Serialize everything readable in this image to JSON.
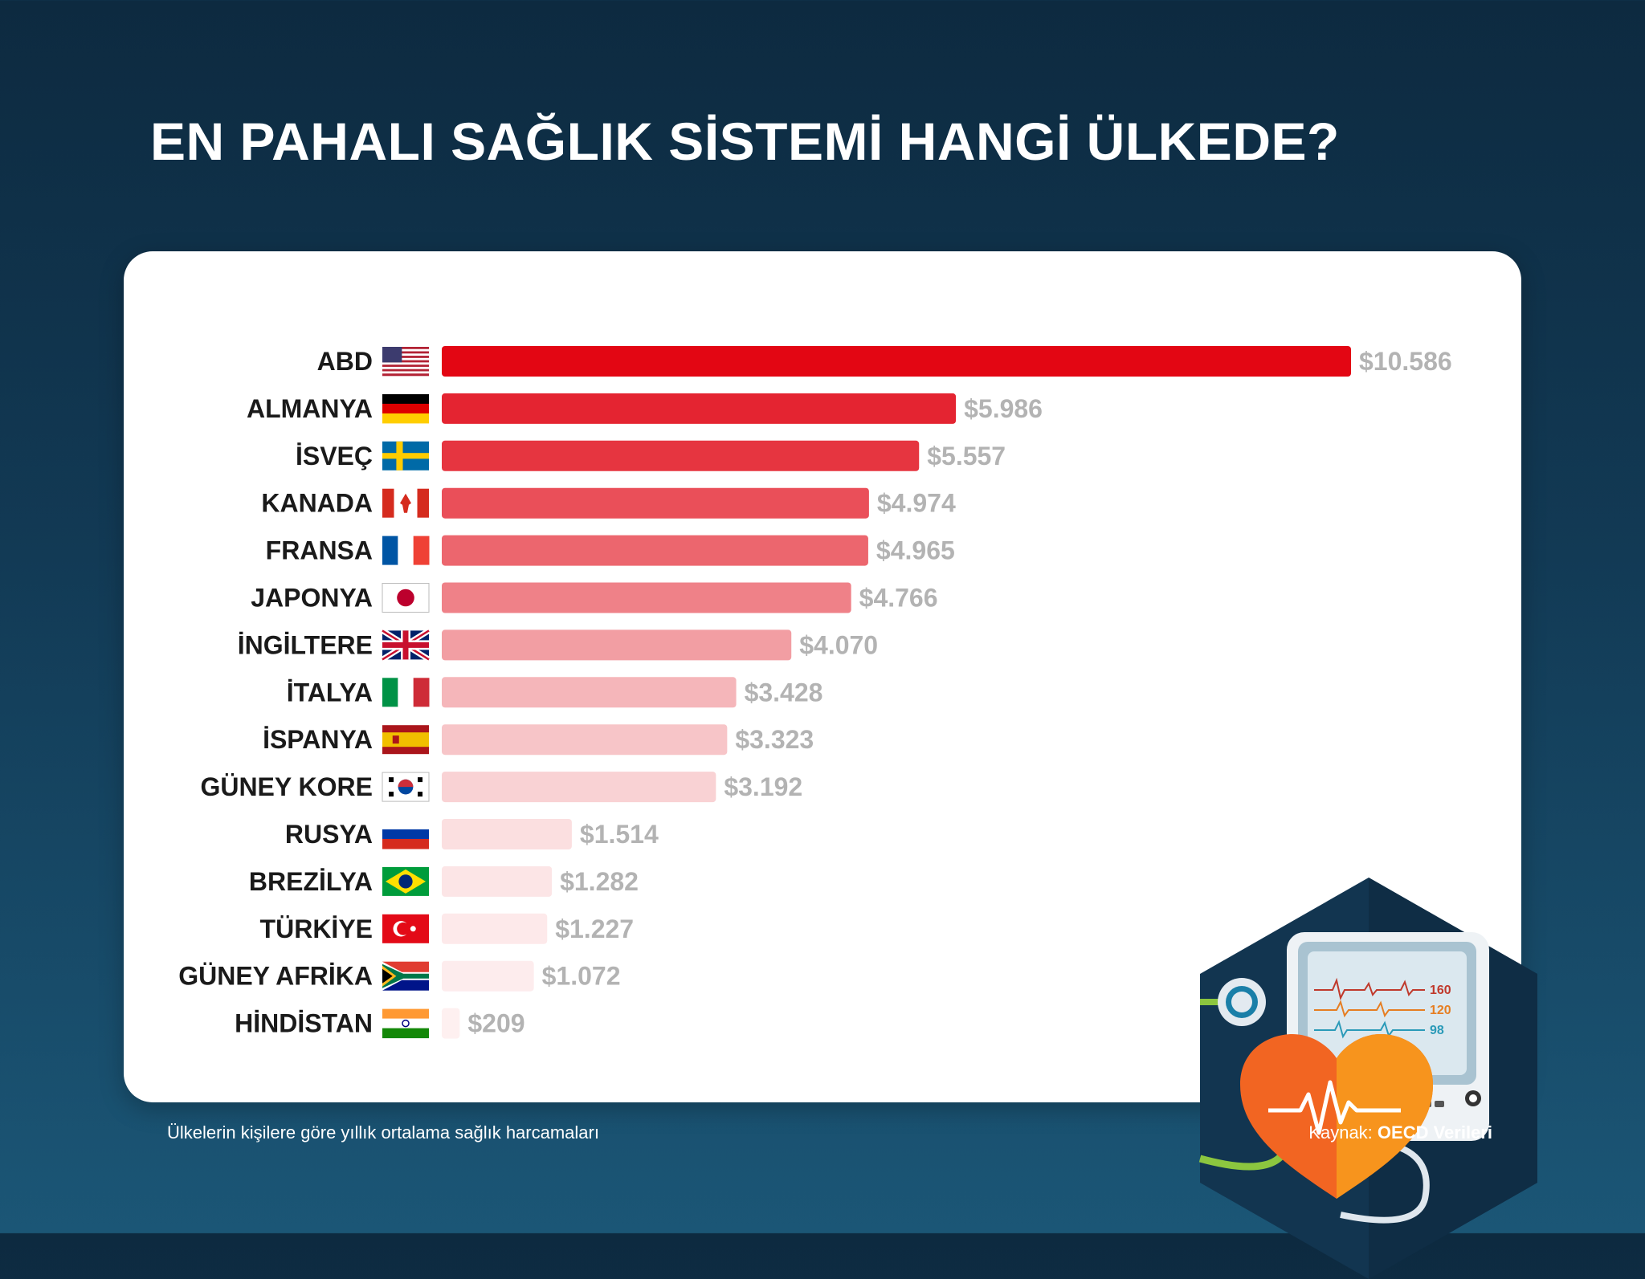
{
  "title": "EN PAHALI SAĞLIK SİSTEMİ HANGİ ÜLKEDE?",
  "footnote": "Ülkelerin kişilere göre yıllık ortalama sağlık harcamaları",
  "source": {
    "label": "Kaynak:",
    "value": "OECD Verileri"
  },
  "chart_data": {
    "type": "bar",
    "orientation": "horizontal",
    "title": "EN PAHALI SAĞLIK SİSTEMİ HANGİ ÜLKEDE?",
    "xlabel": "",
    "ylabel": "",
    "unit": "$",
    "categories": [
      "ABD",
      "ALMANYA",
      "İSVEÇ",
      "KANADA",
      "FRANSA",
      "JAPONYA",
      "İNGİLTERE",
      "İTALYA",
      "İSPANYA",
      "GÜNEY KORE",
      "RUSYA",
      "BREZİLYA",
      "TÜRKİYE",
      "GÜNEY AFRİKA",
      "HİNDİSTAN"
    ],
    "values": [
      10586,
      5986,
      5557,
      4974,
      4965,
      4766,
      4070,
      3428,
      3323,
      3192,
      1514,
      1282,
      1227,
      1072,
      209
    ],
    "value_labels": [
      "$10.586",
      "$5.986",
      "$5.557",
      "$4.974",
      "$4.965",
      "$4.766",
      "$4.070",
      "$3.428",
      "$3.323",
      "$3.192",
      "$1.514",
      "$1.282",
      "$1.227",
      "$1.072",
      "$209"
    ],
    "flags": [
      "us-flag",
      "germany-flag",
      "sweden-flag",
      "canada-flag",
      "france-flag",
      "japan-flag",
      "uk-flag",
      "italy-flag",
      "spain-flag",
      "south-korea-flag",
      "russia-flag",
      "brazil-flag",
      "turkey-flag",
      "south-africa-flag",
      "india-flag"
    ],
    "bar_colors": [
      "#e30613",
      "#e42431",
      "#e63540",
      "#ea4f59",
      "#ec666e",
      "#ef8188",
      "#f29ea3",
      "#f5b6ba",
      "#f7c5c8",
      "#f9d2d4",
      "#fbdfe0",
      "#fce5e6",
      "#fde9ea",
      "#fdeced",
      "#fef0f0"
    ],
    "xlim": [
      0,
      10586
    ],
    "grid": false,
    "legend": "none"
  },
  "monitor": {
    "readings": [
      "160",
      "120",
      "98"
    ]
  },
  "colors": {
    "background_top": "#0d2a40",
    "background_bottom": "#1b5676",
    "accent": "#e30613"
  }
}
